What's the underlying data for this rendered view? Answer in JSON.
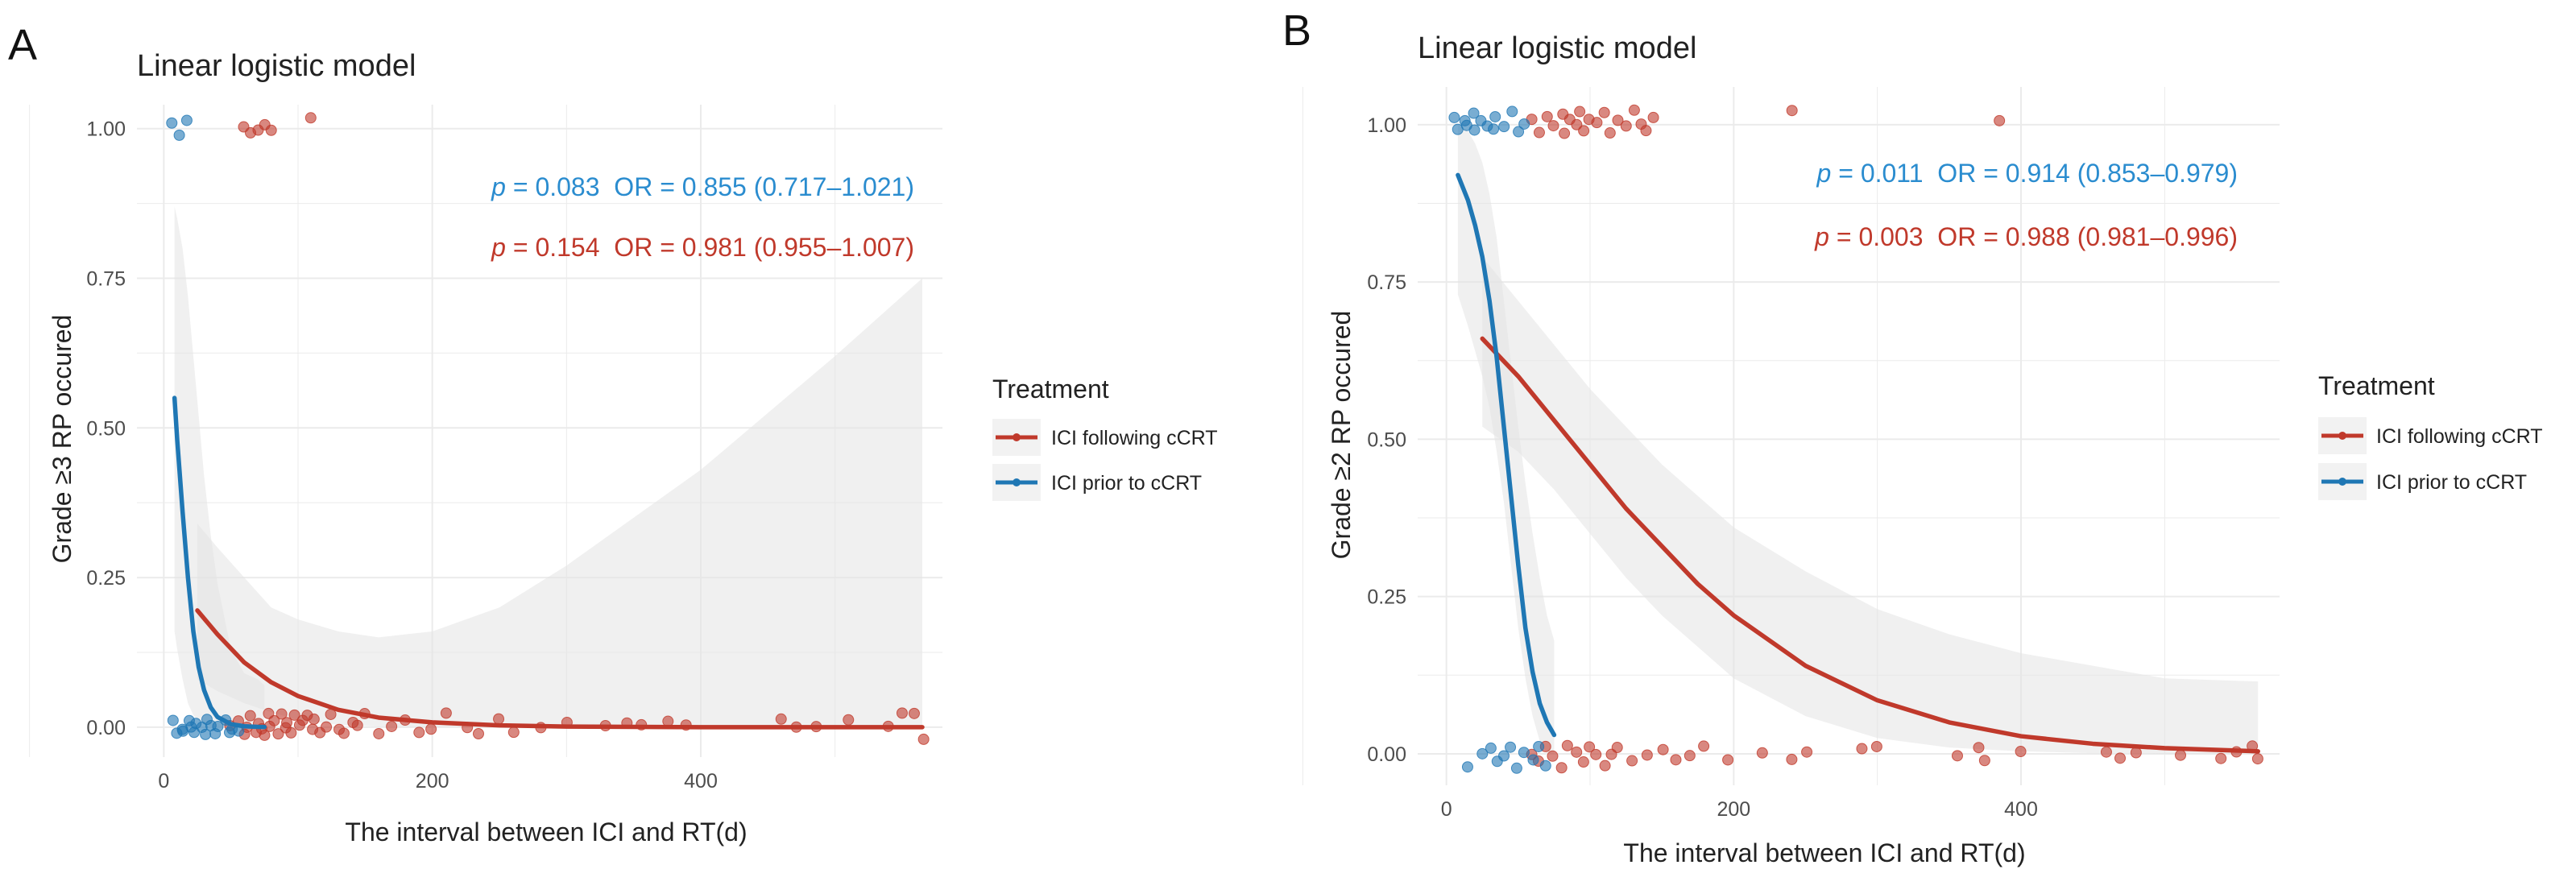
{
  "figure": {
    "panel_a_label": "A",
    "panel_b_label": "B"
  },
  "colors": {
    "following": "#c0392b",
    "prior": "#1f77b4",
    "band": "#e4e4e4",
    "grid": "#ebebeb",
    "text": "#4d4d4d"
  },
  "chart_data": [
    {
      "panel": "A",
      "type": "scatter",
      "title": "Linear logistic model",
      "xlabel": "The interval between ICI and RT(d)",
      "ylabel": "Grade ≥3 RP occured",
      "xlim": [
        -20,
        580
      ],
      "ylim": [
        -0.05,
        1.04
      ],
      "xticks": [
        0,
        200,
        400
      ],
      "xtick_labels": [
        "0",
        "200",
        "400"
      ],
      "yticks": [
        0,
        0.25,
        0.5,
        0.75,
        1.0
      ],
      "ytick_labels": [
        "0.00",
        "0.25",
        "0.50",
        "0.75",
        "1.00"
      ],
      "annotations": [
        {
          "italic": "p",
          "text": " = 0.083  OR = 0.855 (0.717–1.021)",
          "series": "ICI prior to cCRT"
        },
        {
          "italic": "p",
          "text": " = 0.154  OR = 0.981 (0.955–1.007)",
          "series": "ICI following cCRT"
        }
      ],
      "legend": {
        "title": "Treatment",
        "items": [
          {
            "label": "ICI following cCRT",
            "series": "following"
          },
          {
            "label": "ICI prior to cCRT",
            "series": "prior"
          }
        ]
      },
      "series": [
        {
          "name": "ICI following cCRT",
          "key": "following",
          "curve_x": [
            25,
            40,
            60,
            80,
            100,
            130,
            160,
            200,
            250,
            300,
            400,
            500,
            565
          ],
          "curve_y": [
            0.195,
            0.155,
            0.108,
            0.075,
            0.052,
            0.029,
            0.016,
            0.008,
            0.003,
            0.001,
            0.0,
            0.0,
            0.0
          ],
          "band_upper": [
            0.34,
            0.3,
            0.25,
            0.2,
            0.18,
            0.16,
            0.15,
            0.16,
            0.2,
            0.27,
            0.43,
            0.62,
            0.75
          ],
          "band_lower": [
            0.08,
            0.06,
            0.04,
            0.025,
            0.012,
            0.004,
            0.001,
            0.0,
            0.0,
            0.0,
            0.0,
            0.0,
            0.0
          ],
          "points": [
            [
              50,
              0.0
            ],
            [
              55,
              0.01
            ],
            [
              60,
              -0.01
            ],
            [
              62,
              0.0
            ],
            [
              65,
              0.02
            ],
            [
              68,
              -0.01
            ],
            [
              70,
              0.01
            ],
            [
              73,
              0.0
            ],
            [
              75,
              -0.01
            ],
            [
              78,
              0.02
            ],
            [
              80,
              0.0
            ],
            [
              82,
              0.01
            ],
            [
              85,
              -0.01
            ],
            [
              88,
              0.02
            ],
            [
              90,
              0.0
            ],
            [
              92,
              0.01
            ],
            [
              95,
              -0.01
            ],
            [
              98,
              0.02
            ],
            [
              100,
              0.0
            ],
            [
              103,
              0.01
            ],
            [
              106,
              0.02
            ],
            [
              110,
              0.0
            ],
            [
              113,
              0.01
            ],
            [
              116,
              -0.01
            ],
            [
              120,
              0.0
            ],
            [
              125,
              0.02
            ],
            [
              130,
              0.0
            ],
            [
              135,
              -0.01
            ],
            [
              140,
              0.01
            ],
            [
              145,
              0.0
            ],
            [
              150,
              0.02
            ],
            [
              160,
              -0.01
            ],
            [
              170,
              0.0
            ],
            [
              180,
              0.01
            ],
            [
              190,
              -0.01
            ],
            [
              200,
              0.0
            ],
            [
              210,
              0.02
            ],
            [
              225,
              0.0
            ],
            [
              235,
              -0.01
            ],
            [
              250,
              0.01
            ],
            [
              260,
              -0.01
            ],
            [
              280,
              0.0
            ],
            [
              300,
              0.01
            ],
            [
              330,
              0.0
            ],
            [
              345,
              0.01
            ],
            [
              355,
              0.0
            ],
            [
              375,
              0.01
            ],
            [
              390,
              0.0
            ],
            [
              460,
              0.01
            ],
            [
              470,
              0.0
            ],
            [
              485,
              0.0
            ],
            [
              510,
              0.01
            ],
            [
              540,
              0.0
            ],
            [
              550,
              0.02
            ],
            [
              560,
              0.02
            ],
            [
              565,
              -0.02
            ],
            [
              60,
              1.0
            ],
            [
              65,
              0.99
            ],
            [
              70,
              1.0
            ],
            [
              75,
              1.01
            ],
            [
              80,
              0.995
            ],
            [
              110,
              1.02
            ]
          ]
        },
        {
          "name": "ICI prior to cCRT",
          "key": "prior",
          "curve_x": [
            8,
            10,
            14,
            18,
            22,
            26,
            30,
            35,
            40,
            50,
            60,
            70,
            75
          ],
          "curve_y": [
            0.55,
            0.48,
            0.36,
            0.25,
            0.16,
            0.1,
            0.062,
            0.033,
            0.017,
            0.005,
            0.0015,
            0.0005,
            0.0003
          ],
          "band_upper": [
            0.87,
            0.85,
            0.8,
            0.72,
            0.62,
            0.52,
            0.42,
            0.32,
            0.24,
            0.13,
            0.09,
            0.08,
            0.07
          ],
          "band_lower": [
            0.16,
            0.13,
            0.08,
            0.04,
            0.02,
            0.01,
            0.005,
            0.002,
            0.001,
            0.0,
            0.0,
            0.0,
            0.0
          ],
          "points": [
            [
              8,
              0.01
            ],
            [
              10,
              -0.01
            ],
            [
              13,
              0.0
            ],
            [
              15,
              -0.01
            ],
            [
              18,
              0.01
            ],
            [
              20,
              0.0
            ],
            [
              22,
              -0.01
            ],
            [
              25,
              0.01
            ],
            [
              28,
              0.0
            ],
            [
              30,
              -0.01
            ],
            [
              32,
              0.01
            ],
            [
              35,
              0.0
            ],
            [
              38,
              -0.01
            ],
            [
              40,
              0.0
            ],
            [
              45,
              0.01
            ],
            [
              48,
              -0.01
            ],
            [
              52,
              0.0
            ],
            [
              55,
              -0.01
            ],
            [
              5,
              1.01
            ],
            [
              12,
              0.99
            ],
            [
              18,
              1.01
            ]
          ]
        }
      ]
    },
    {
      "panel": "B",
      "type": "scatter",
      "title": "Linear logistic model",
      "xlabel": "The interval between ICI and RT(d)",
      "ylabel": "Grade ≥2 RP occured",
      "xlim": [
        -20,
        580
      ],
      "ylim": [
        -0.05,
        1.06
      ],
      "xticks": [
        0,
        200,
        400
      ],
      "xtick_labels": [
        "0",
        "200",
        "400"
      ],
      "yticks": [
        0,
        0.25,
        0.5,
        0.75,
        1.0
      ],
      "ytick_labels": [
        "0.00",
        "0.25",
        "0.50",
        "0.75",
        "1.00"
      ],
      "annotations": [
        {
          "italic": "p",
          "text": " = 0.011  OR = 0.914 (0.853–0.979)",
          "series": "ICI prior to cCRT"
        },
        {
          "italic": "p",
          "text": " = 0.003  OR = 0.988 (0.981–0.996)",
          "series": "ICI following cCRT"
        }
      ],
      "legend": {
        "title": "Treatment",
        "items": [
          {
            "label": "ICI following cCRT",
            "series": "following"
          },
          {
            "label": "ICI prior to cCRT",
            "series": "prior"
          }
        ]
      },
      "series": [
        {
          "name": "ICI following cCRT",
          "key": "following",
          "curve_x": [
            25,
            50,
            75,
            100,
            125,
            150,
            175,
            200,
            250,
            300,
            350,
            400,
            450,
            500,
            565
          ],
          "curve_y": [
            0.66,
            0.6,
            0.53,
            0.46,
            0.39,
            0.33,
            0.27,
            0.22,
            0.14,
            0.085,
            0.05,
            0.028,
            0.016,
            0.009,
            0.004
          ],
          "band_upper": [
            0.79,
            0.72,
            0.65,
            0.58,
            0.52,
            0.46,
            0.41,
            0.36,
            0.29,
            0.23,
            0.19,
            0.16,
            0.14,
            0.12,
            0.115
          ],
          "band_lower": [
            0.52,
            0.48,
            0.42,
            0.35,
            0.28,
            0.22,
            0.17,
            0.12,
            0.06,
            0.025,
            0.01,
            0.004,
            0.001,
            0.0,
            0.0
          ],
          "points": [
            [
              60,
              1.01
            ],
            [
              65,
              0.99
            ],
            [
              70,
              1.01
            ],
            [
              75,
              1.0
            ],
            [
              80,
              1.02
            ],
            [
              83,
              0.99
            ],
            [
              86,
              1.01
            ],
            [
              90,
              1.0
            ],
            [
              93,
              1.02
            ],
            [
              96,
              0.99
            ],
            [
              100,
              1.01
            ],
            [
              105,
              1.0
            ],
            [
              110,
              1.02
            ],
            [
              115,
              0.99
            ],
            [
              120,
              1.01
            ],
            [
              125,
              1.0
            ],
            [
              130,
              1.02
            ],
            [
              135,
              1.0
            ],
            [
              140,
              0.99
            ],
            [
              145,
              1.01
            ],
            [
              240,
              1.02
            ],
            [
              385,
              1.01
            ],
            [
              60,
              0.0
            ],
            [
              65,
              -0.01
            ],
            [
              70,
              0.01
            ],
            [
              75,
              0.0
            ],
            [
              80,
              -0.02
            ],
            [
              85,
              0.01
            ],
            [
              90,
              0.0
            ],
            [
              95,
              -0.01
            ],
            [
              100,
              0.01
            ],
            [
              105,
              0.0
            ],
            [
              110,
              -0.02
            ],
            [
              115,
              0.0
            ],
            [
              120,
              0.01
            ],
            [
              130,
              -0.01
            ],
            [
              140,
              0.0
            ],
            [
              150,
              0.01
            ],
            [
              160,
              -0.01
            ],
            [
              170,
              0.0
            ],
            [
              180,
              0.01
            ],
            [
              195,
              -0.01
            ],
            [
              220,
              0.0
            ],
            [
              240,
              -0.01
            ],
            [
              250,
              0.0
            ],
            [
              290,
              0.01
            ],
            [
              300,
              0.01
            ],
            [
              355,
              0.0
            ],
            [
              370,
              0.01
            ],
            [
              375,
              -0.01
            ],
            [
              400,
              0.0
            ],
            [
              460,
              0.0
            ],
            [
              470,
              -0.01
            ],
            [
              480,
              0.0
            ],
            [
              510,
              0.0
            ],
            [
              540,
              -0.01
            ],
            [
              550,
              0.0
            ],
            [
              560,
              0.01
            ],
            [
              565,
              -0.01
            ]
          ]
        },
        {
          "name": "ICI prior to cCRT",
          "key": "prior",
          "curve_x": [
            8,
            15,
            20,
            25,
            30,
            35,
            40,
            45,
            50,
            55,
            60,
            65,
            70,
            75
          ],
          "curve_y": [
            0.92,
            0.88,
            0.84,
            0.79,
            0.72,
            0.63,
            0.52,
            0.41,
            0.3,
            0.2,
            0.13,
            0.08,
            0.05,
            0.03
          ],
          "band_upper": [
            1.0,
            0.99,
            0.97,
            0.94,
            0.89,
            0.82,
            0.72,
            0.62,
            0.52,
            0.43,
            0.35,
            0.28,
            0.22,
            0.18
          ],
          "band_lower": [
            0.73,
            0.68,
            0.64,
            0.6,
            0.55,
            0.48,
            0.4,
            0.3,
            0.2,
            0.12,
            0.06,
            0.02,
            0.0,
            0.0
          ],
          "points": [
            [
              5,
              1.01
            ],
            [
              8,
              0.99
            ],
            [
              12,
              1.01
            ],
            [
              15,
              1.0
            ],
            [
              18,
              1.02
            ],
            [
              20,
              0.99
            ],
            [
              25,
              1.01
            ],
            [
              28,
              1.0
            ],
            [
              32,
              0.99
            ],
            [
              35,
              1.01
            ],
            [
              40,
              1.0
            ],
            [
              45,
              1.02
            ],
            [
              50,
              0.99
            ],
            [
              55,
              1.0
            ],
            [
              15,
              -0.02
            ],
            [
              25,
              0.0
            ],
            [
              30,
              0.01
            ],
            [
              35,
              -0.01
            ],
            [
              40,
              0.0
            ],
            [
              45,
              0.01
            ],
            [
              50,
              -0.02
            ],
            [
              55,
              0.0
            ],
            [
              60,
              -0.01
            ],
            [
              65,
              0.01
            ],
            [
              70,
              -0.02
            ]
          ]
        }
      ]
    }
  ]
}
